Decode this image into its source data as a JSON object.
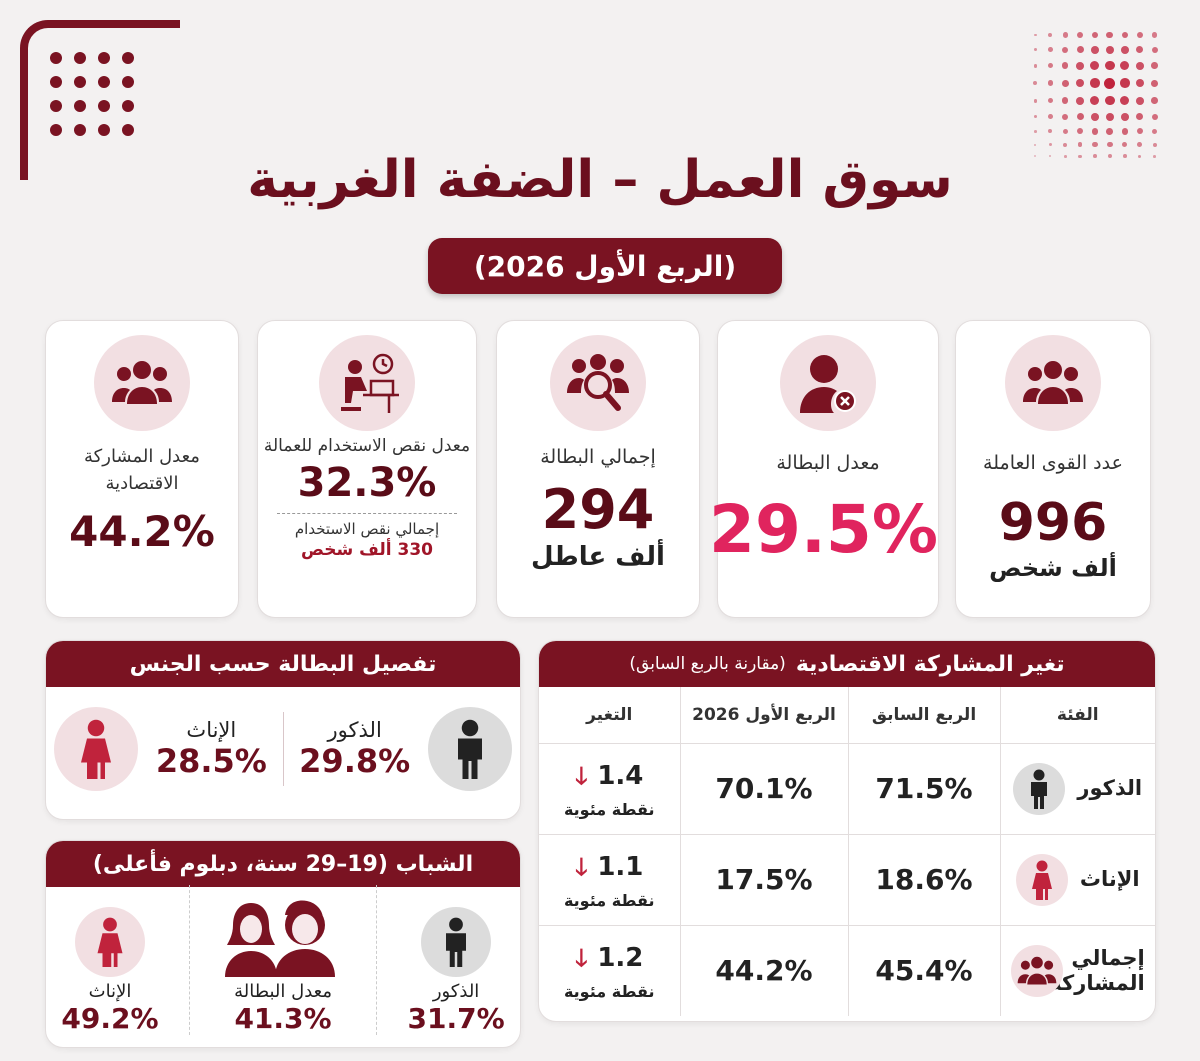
{
  "header": {
    "title": "سوق العمل – الضفة الغربية",
    "period": "(الربع الأول 2026)"
  },
  "kpis": [
    {
      "icon": "group-icon",
      "label": "عدد القوى العاملة",
      "value": "996",
      "unit": "ألف شخص"
    },
    {
      "icon": "person-x-icon",
      "label": "معدل البطالة",
      "value": "29.5%"
    },
    {
      "icon": "group-search-icon",
      "label": "إجمالي البطالة",
      "value": "294",
      "unit": "ألف عاطل"
    },
    {
      "icon": "person-desk-clock-icon",
      "label": "معدل نقص الاستخدام للعمالة",
      "value": "32.3%",
      "sub_label": "إجمالي نقص الاستخدام",
      "sub_value": "330 ألف شخص"
    },
    {
      "icon": "group-icon",
      "label": "معدل المشاركة الاقتصادية",
      "value": "44.2%"
    }
  ],
  "unemployment_by_gender": {
    "title": "تفصيل البطالة حسب الجنس",
    "male": {
      "label": "الذكور",
      "value": "29.8%"
    },
    "female": {
      "label": "الإناث",
      "value": "28.5%"
    }
  },
  "youth": {
    "title": "الشباب (19–29 سنة، دبلوم فأعلى)",
    "male": {
      "label": "الذكور",
      "value": "31.7%"
    },
    "total": {
      "label": "معدل البطالة",
      "value": "41.3%"
    },
    "female": {
      "label": "الإناث",
      "value": "49.2%"
    }
  },
  "participation_change": {
    "title": "تغير المشاركة الاقتصادية",
    "subtitle": "(مقارنة بالربع السابق)",
    "headers": [
      "الفئة",
      "الربع السابق",
      "الربع الأول 2026",
      "التغير"
    ],
    "rows": [
      {
        "category": "الذكور",
        "previous": "71.5%",
        "current": "70.1%",
        "change": "1.4",
        "change_unit": "نقطة مئوية"
      },
      {
        "category": "الإناث",
        "previous": "18.6%",
        "current": "17.5%",
        "change": "1.1",
        "change_unit": "نقطة مئوية"
      },
      {
        "category": "إجمالي المشاركة",
        "previous": "45.4%",
        "current": "44.2%",
        "change": "1.2",
        "change_unit": "نقطة مئوية"
      }
    ]
  },
  "colors": {
    "brand": "#7a1322",
    "accent": "#e0245e",
    "background": "#f3f1f1"
  }
}
